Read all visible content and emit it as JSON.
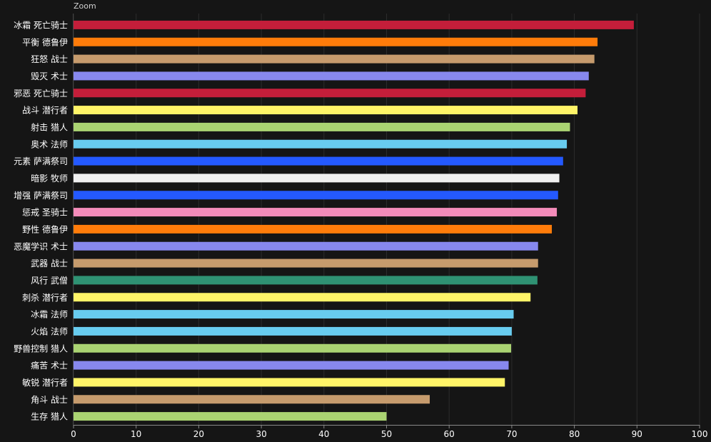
{
  "zoom_label": "Zoom",
  "chart_data": {
    "type": "bar",
    "orientation": "horizontal",
    "categories": [
      "冰霜 死亡骑士",
      "平衡 德鲁伊",
      "狂怒 战士",
      "毁灭 术士",
      "邪恶 死亡骑士",
      "战斗 潜行者",
      "射击 猎人",
      "奥术 法师",
      "元素 萨满祭司",
      "暗影 牧师",
      "增强 萨满祭司",
      "惩戒 圣骑士",
      "野性 德鲁伊",
      "恶魔学识 术士",
      "武器 战士",
      "风行 武僧",
      "刺杀 潜行者",
      "冰霜 法师",
      "火焰 法师",
      "野兽控制 猎人",
      "痛苦 术士",
      "敏锐 潜行者",
      "角斗 战士",
      "生存 猎人"
    ],
    "values": [
      89.5,
      83.7,
      83.2,
      82.3,
      81.8,
      80.5,
      79.3,
      78.8,
      78.2,
      77.6,
      77.4,
      77.2,
      76.4,
      74.2,
      74.2,
      74.1,
      73.0,
      70.3,
      70.0,
      69.9,
      69.5,
      68.9,
      56.9,
      50.0
    ],
    "colors": [
      "#C41E3A",
      "#FF7C0A",
      "#C69B6D",
      "#8788EE",
      "#C41E3A",
      "#FFF468",
      "#AAD372",
      "#68CCEF",
      "#2459FF",
      "#F0F0F0",
      "#2459FF",
      "#F48CBA",
      "#FF7C0A",
      "#8788EE",
      "#C69B6D",
      "#2F9273",
      "#FFF468",
      "#68CCEF",
      "#68CCEF",
      "#AAD372",
      "#8788EE",
      "#FFF468",
      "#C69B6D",
      "#AAD372"
    ],
    "xlim": [
      0,
      100
    ],
    "xticks": [
      0,
      10,
      20,
      30,
      40,
      50,
      60,
      70,
      80,
      90,
      100
    ],
    "grid": true,
    "title": "",
    "xlabel": "",
    "ylabel": ""
  }
}
